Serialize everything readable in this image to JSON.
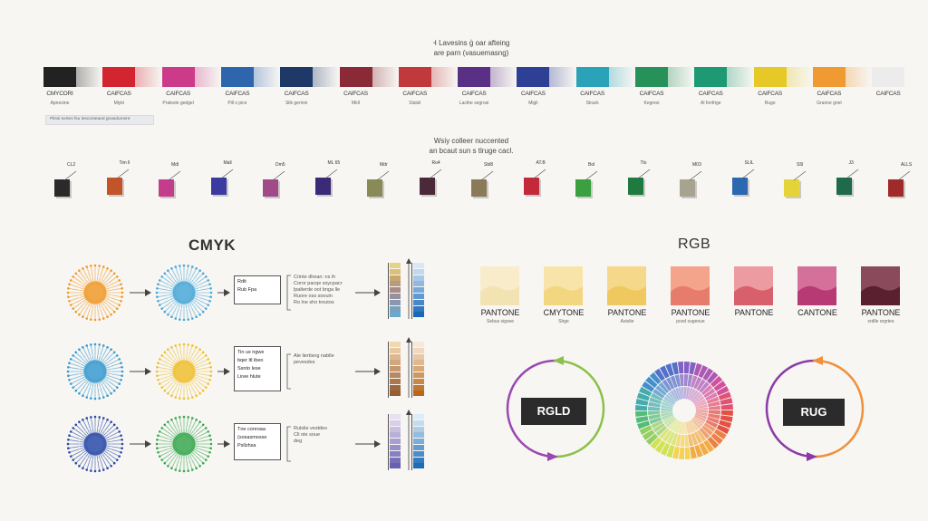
{
  "header": {
    "line1": "Ꟶ Lavesins ģ oar afteing",
    "line2": "are parn (vasuemasng)"
  },
  "strip_colors": [
    "#222222",
    "#d32530",
    "#cc3a8a",
    "#2e66ae",
    "#1e3968",
    "#8a2a36",
    "#c0393b",
    "#5a2f86",
    "#2e3f96",
    "#2aa3b8",
    "#27915a",
    "#1d9a73",
    "#e6c926",
    "#ef9a32",
    "#ececec"
  ],
  "strip_labels": [
    {
      "top": "CMYCORI",
      "bot": "Apnesine"
    },
    {
      "top": "CAIFCAS",
      "bot": "Miyki"
    },
    {
      "top": "CAIFCAS",
      "bot": "Pralesle gedgel"
    },
    {
      "top": "CAIFCAS",
      "bot": "Pill s pice"
    },
    {
      "top": "CAIFCAS",
      "bot": "Silk gerinin"
    },
    {
      "top": "CAIFCAS",
      "bot": "Mkll"
    },
    {
      "top": "CAIFCAS",
      "bot": "Slalsil"
    },
    {
      "top": "CAIFCAS",
      "bot": "Lacthe segrosi"
    },
    {
      "top": "CAIFCAS",
      "bot": "Migli"
    },
    {
      "top": "CAIFCAS",
      "bot": "Strack"
    },
    {
      "top": "CAIFCAS",
      "bot": "Kegresi"
    },
    {
      "top": "CAIFCAS",
      "bot": "Al fonfrige"
    },
    {
      "top": "CAIFCAS",
      "bot": "Rugo"
    },
    {
      "top": "CAIFCAS",
      "bot": "Granne gnel"
    },
    {
      "top": "CAIFCAS",
      "bot": ""
    }
  ],
  "strip_note": "Plissi sortes fsu lesconteaed gnasdument",
  "middle_title": {
    "line1": "Wsiy colleer nuccented",
    "line2": "an bcaut sun s tlruge cacl."
  },
  "cubes": [
    {
      "label": "CL2",
      "color": "#2a2a2a"
    },
    {
      "label": "Tim ll",
      "color": "#c2542a"
    },
    {
      "label": "Mdl",
      "color": "#c43c8c"
    },
    {
      "label": "Mall",
      "color": "#3b3aa0"
    },
    {
      "label": "Dm5",
      "color": "#a04a8a"
    },
    {
      "label": "ML 65",
      "color": "#3a2a78"
    },
    {
      "label": "Mdr",
      "color": "#8a8a58"
    },
    {
      "label": "Ro4",
      "color": "#4a2a38"
    },
    {
      "label": "Sbl8",
      "color": "#8a7a5a"
    },
    {
      "label": "AT.B",
      "color": "#c22a3a"
    },
    {
      "label": "Bol",
      "color": "#3aa040"
    },
    {
      "label": "Tlo",
      "color": "#1e7a3e"
    },
    {
      "label": "M03",
      "color": "#a8a290"
    },
    {
      "label": "SLIL",
      "color": "#2a68b0"
    },
    {
      "label": "S5l",
      "color": "#e4d43a"
    },
    {
      "label": "J3",
      "color": "#1e6a4a"
    },
    {
      "label": "ALLS",
      "color": "#a02a2a"
    }
  ],
  "cmyk": {
    "title": "CMYK",
    "rows": [
      {
        "c1": "#f19a2a",
        "c2": "#4aa8d8",
        "box": [
          "Rdit",
          "Rub Fpa"
        ],
        "note": [
          "Crinte dhean: ns ih",
          "Coror pacqe ssycpacr",
          "lpalterde oot bnga lle",
          "Ruore oss soouin",
          "Ro lne sho troutos"
        ]
      },
      {
        "c1": "#3a9ad0",
        "c2": "#f0c030",
        "box": [
          "Tin us ngwe",
          "bqer ltl ibeo",
          "Ssnto lese",
          "Liree hlute"
        ],
        "note": [
          "Ale liertisng nablle",
          "pevesdes"
        ]
      },
      {
        "c1": "#2a4aa8",
        "c2": "#3aa850",
        "box": [
          "Tne conroaa",
          "(sosasmosse",
          "Psllzhsa"
        ],
        "note": [
          "Rulslie vestdes",
          "Cll ote soue",
          "deg"
        ]
      }
    ]
  },
  "rgb": {
    "title": "RGB",
    "swatches": [
      {
        "top": "#f8eccb",
        "wave": "#f3e3b2",
        "label": "PANTONE",
        "sub": "Sebus sigsee"
      },
      {
        "top": "#f8e4a8",
        "wave": "#f3d680",
        "label": "CMYTONE",
        "sub": "Shge"
      },
      {
        "top": "#f5d88a",
        "wave": "#efc860",
        "label": "PANTONE",
        "sub": "Asiolie"
      },
      {
        "top": "#f3a48a",
        "wave": "#e87c6c",
        "label": "PANTONE",
        "sub": "posd sugeoue"
      },
      {
        "top": "#ec9ca0",
        "wave": "#d8606c",
        "label": "PANTONE",
        "sub": ""
      },
      {
        "top": "#d4709a",
        "wave": "#b83a74",
        "label": "CANTONE",
        "sub": ""
      },
      {
        "top": "#8a4a5c",
        "wave": "#5a2030",
        "label": "PANTONE",
        "sub": "srdlle orgrteo"
      }
    ],
    "ring1_label": "RGLD",
    "ring2_label": "RUG",
    "wheel_colors": [
      "#e2483a",
      "#ec7a3a",
      "#f2a83a",
      "#f4d04a",
      "#cfe04a",
      "#8ecc5a",
      "#4ab870",
      "#3aa8a8",
      "#3a88c8",
      "#4a68c8",
      "#7a58c0",
      "#a850b0",
      "#d04898",
      "#e0486a"
    ]
  }
}
